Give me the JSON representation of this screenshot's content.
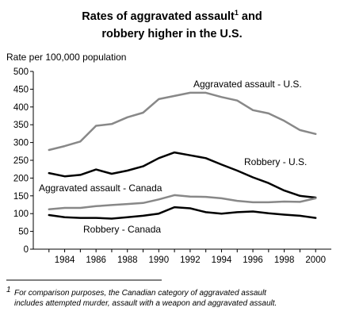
{
  "chart_data": {
    "type": "line",
    "title_line1": "Rates of aggravated assault",
    "title_sup": "1",
    "title_line1_tail": " and",
    "title_line2": "robbery higher in the U.S.",
    "ylabel": "Rate per 100,000 population",
    "xlabel": "",
    "ylim": [
      0,
      500
    ],
    "ytick_values": [
      0,
      50,
      100,
      150,
      200,
      250,
      300,
      350,
      400,
      450,
      500
    ],
    "ytick_labels": [
      "0",
      "50",
      "100",
      "150",
      "200",
      "250",
      "300",
      "350",
      "400",
      "450",
      "500"
    ],
    "xlim": [
      1982,
      2001
    ],
    "xtick_values": [
      1984,
      1986,
      1988,
      1990,
      1992,
      1994,
      1996,
      1998,
      2000
    ],
    "xtick_labels": [
      "1984",
      "1986",
      "1988",
      "1990",
      "1992",
      "1994",
      "1996",
      "1998",
      "2000"
    ],
    "x": [
      1983,
      1984,
      1985,
      1986,
      1987,
      1988,
      1989,
      1990,
      1991,
      1992,
      1993,
      1994,
      1995,
      1996,
      1997,
      1998,
      1999,
      2000
    ],
    "series": [
      {
        "name": "Aggravated assault - U.S.",
        "color": "#888888",
        "values": [
          279,
          290,
          303,
          347,
          352,
          371,
          384,
          422,
          431,
          440,
          440,
          428,
          418,
          391,
          382,
          361,
          335,
          324
        ]
      },
      {
        "name": "Robbery - U.S.",
        "color": "#000000",
        "values": [
          214,
          205,
          209,
          224,
          212,
          221,
          233,
          256,
          272,
          264,
          256,
          238,
          221,
          202,
          186,
          165,
          150,
          145
        ]
      },
      {
        "name": "Aggravated assault - Canada",
        "color": "#888888",
        "values": [
          112,
          116,
          116,
          121,
          124,
          127,
          130,
          140,
          152,
          148,
          147,
          143,
          136,
          132,
          132,
          134,
          133,
          143
        ]
      },
      {
        "name": "Robbery - Canada",
        "color": "#000000",
        "values": [
          96,
          90,
          88,
          88,
          86,
          90,
          94,
          100,
          118,
          115,
          104,
          100,
          104,
          106,
          101,
          97,
          94,
          88
        ]
      }
    ],
    "grid": false
  },
  "footnote": {
    "marker": "1",
    "line1": "For comparison purposes, the Canadian category of aggravated assault",
    "line2": "includes attempted murder, assault with a weapon and aggravated assault."
  }
}
